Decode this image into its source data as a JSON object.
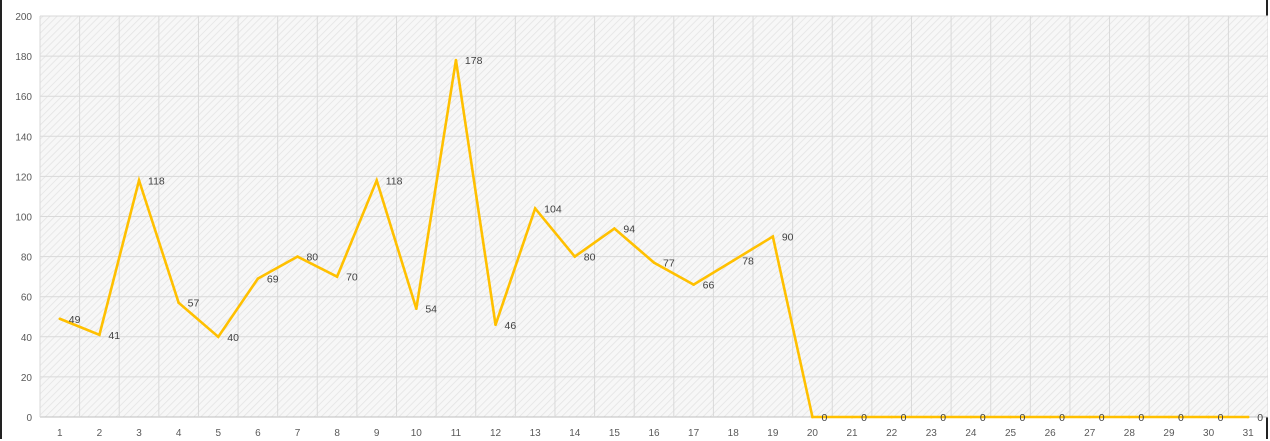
{
  "chart_data": {
    "type": "line",
    "title": "",
    "xlabel": "",
    "ylabel": "",
    "x": [
      "1",
      "2",
      "3",
      "4",
      "5",
      "6",
      "7",
      "8",
      "9",
      "10",
      "11",
      "12",
      "13",
      "14",
      "15",
      "16",
      "17",
      "18",
      "19",
      "20",
      "21",
      "22",
      "23",
      "24",
      "25",
      "26",
      "27",
      "28",
      "29",
      "30",
      "31"
    ],
    "series": [
      {
        "values": [
          49,
          41,
          118,
          57,
          40,
          69,
          80,
          70,
          118,
          54,
          178,
          46,
          104,
          80,
          94,
          77,
          66,
          78,
          90,
          0,
          0,
          0,
          0,
          0,
          0,
          0,
          0,
          0,
          0,
          0,
          0
        ],
        "color": "#FFC000"
      }
    ],
    "ylim": [
      0,
      200
    ],
    "yticks": [
      0,
      20,
      40,
      60,
      80,
      100,
      120,
      140,
      160,
      180,
      200
    ],
    "grid": true,
    "plot_background": "hatched light gray",
    "data_labels": true,
    "legend": "none"
  },
  "colors": {
    "line": "#FFC000",
    "gridline": "#d9d9d9",
    "hatch": "#e6e6e6",
    "tick_text": "#595959",
    "label_text": "#404040"
  }
}
